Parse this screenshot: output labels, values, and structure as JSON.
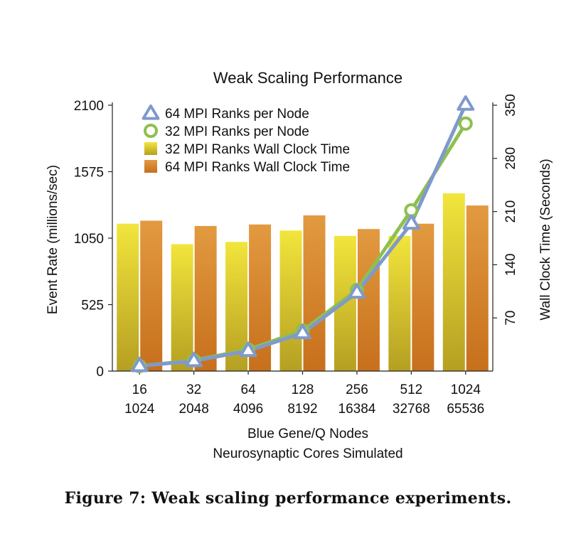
{
  "caption": "Figure 7: Weak scaling performance experiments.",
  "chart_data": {
    "type": "bar",
    "title": "Weak Scaling Performance",
    "xlabel": [
      "Blue Gene/Q Nodes",
      "Neurosynaptic Cores Simulated"
    ],
    "ylabel": "Event Rate (millions/sec)",
    "y2label": "Wall Clock Time (Seconds)",
    "categories": [
      [
        "16",
        "1024"
      ],
      [
        "32",
        "2048"
      ],
      [
        "64",
        "4096"
      ],
      [
        "128",
        "8192"
      ],
      [
        "256",
        "16384"
      ],
      [
        "512",
        "32768"
      ],
      [
        "1024",
        "65536"
      ]
    ],
    "ylim": [
      0,
      2100
    ],
    "y2lim": [
      0,
      350
    ],
    "yticks": [
      0,
      525,
      1050,
      1575,
      2100
    ],
    "y2ticks": [
      70,
      140,
      210,
      280,
      350
    ],
    "legend_position": "top-left",
    "grid": false,
    "series": [
      {
        "name": "64 MPI Ranks per Node",
        "type": "line",
        "axis": "left",
        "marker": "triangle",
        "color": "#8099CC",
        "values": [
          40,
          80,
          160,
          300,
          620,
          1165,
          2105
        ]
      },
      {
        "name": "32 MPI Ranks per Node",
        "type": "line",
        "axis": "left",
        "marker": "circle",
        "color": "#8DC04F",
        "values": [
          40,
          85,
          170,
          320,
          640,
          1270,
          1955
        ]
      },
      {
        "name": "32 MPI Ranks Wall Clock Time",
        "type": "bar",
        "axis": "right",
        "color": "#E6D630",
        "values": [
          194,
          167,
          170,
          185,
          178,
          178,
          234
        ]
      },
      {
        "name": "64 MPI Ranks Wall Clock Time",
        "type": "bar",
        "axis": "right",
        "color": "#D98A2E",
        "values": [
          198,
          191,
          193,
          205,
          187,
          194,
          218
        ]
      }
    ]
  }
}
